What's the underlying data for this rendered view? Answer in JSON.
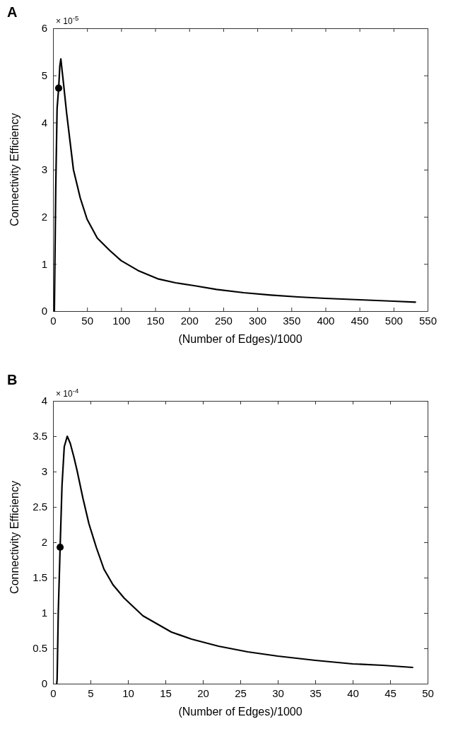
{
  "chart_data": [
    {
      "type": "line",
      "title": "A",
      "xlabel": "(Number of Edges)/1000",
      "ylabel": "Connectivity Efficiency",
      "annotations": [
        "× 10$^{-5}$"
      ],
      "xlim": [
        0,
        550
      ],
      "xticks": [
        0,
        50,
        100,
        150,
        200,
        250,
        300,
        350,
        400,
        450,
        500,
        550
      ],
      "ylim": [
        0,
        6
      ],
      "yticks": [
        0,
        1,
        2,
        3,
        4,
        5,
        6
      ],
      "grid": false,
      "series": [
        {
          "type": "line",
          "color": "#000000",
          "marker": "none",
          "line_style": "solid",
          "x": [
            2,
            4,
            6,
            8.3,
            10,
            11.5,
            13,
            16,
            20,
            25,
            30,
            40,
            50,
            65,
            83,
            100,
            125,
            155,
            180,
            207,
            240,
            280,
            320,
            360,
            400,
            450,
            500,
            532
          ],
          "values": [
            0,
            2.6,
            4.3,
            4.73,
            5.2,
            5.35,
            5.15,
            4.75,
            4.2,
            3.6,
            3.0,
            2.4,
            1.95,
            1.55,
            1.29,
            1.07,
            0.86,
            0.68,
            0.6,
            0.54,
            0.46,
            0.39,
            0.34,
            0.3,
            0.27,
            0.24,
            0.21,
            0.19
          ]
        },
        {
          "type": "scatter",
          "color": "#000000",
          "marker": "circle",
          "x": [
            8.3
          ],
          "values": [
            4.73
          ]
        }
      ]
    },
    {
      "type": "line",
      "title": "B",
      "xlabel": "(Number of Edges)/1000",
      "ylabel": "Connectivity Efficiency",
      "annotations": [
        "× 10$^{-4}$"
      ],
      "xlim": [
        0,
        50
      ],
      "xticks": [
        0,
        5,
        10,
        15,
        20,
        25,
        30,
        35,
        40,
        45,
        50
      ],
      "ylim": [
        0,
        4
      ],
      "yticks": [
        0,
        0.5,
        1,
        1.5,
        2,
        2.5,
        3,
        3.5,
        4
      ],
      "grid": false,
      "series": [
        {
          "type": "line",
          "color": "#000000",
          "marker": "none",
          "line_style": "solid",
          "x": [
            0.5,
            0.55,
            0.7,
            0.95,
            1.2,
            1.5,
            1.9,
            2.3,
            2.8,
            3.2,
            4.0,
            4.8,
            5.8,
            6.8,
            8.0,
            9.5,
            12.0,
            15.8,
            18.5,
            22.1,
            26,
            30,
            35,
            40,
            44,
            48
          ],
          "values": [
            0,
            0.07,
            1.0,
            1.93,
            2.8,
            3.35,
            3.5,
            3.4,
            3.2,
            3.02,
            2.62,
            2.26,
            1.92,
            1.62,
            1.4,
            1.21,
            0.96,
            0.73,
            0.63,
            0.53,
            0.45,
            0.39,
            0.33,
            0.28,
            0.26,
            0.23
          ]
        },
        {
          "type": "scatter",
          "color": "#000000",
          "marker": "circle",
          "x": [
            0.95
          ],
          "values": [
            1.93
          ]
        }
      ]
    }
  ]
}
